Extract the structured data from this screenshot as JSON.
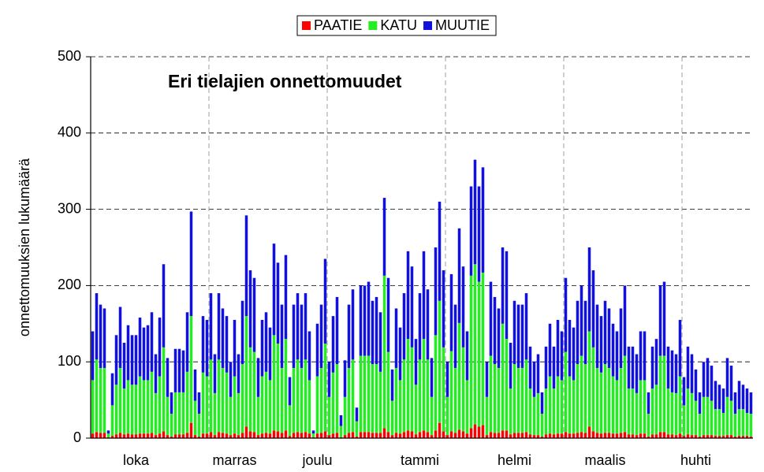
{
  "chart_data": {
    "type": "stacked_bar",
    "title": "Eri tielajien onnettomuudet",
    "y_label": "onnettomuuksien lukumäärä",
    "ylim": [
      0,
      500
    ],
    "yticks": [
      0,
      100,
      200,
      300,
      400,
      500
    ],
    "grid": true,
    "legend": "top",
    "xtick_interval": 30,
    "categories": [
      null,
      null,
      null,
      null,
      null,
      null,
      null,
      null,
      null,
      null,
      null,
      "loka",
      null,
      null,
      null,
      null,
      null,
      null,
      null,
      null,
      null,
      null,
      null,
      null,
      null,
      null,
      null,
      null,
      null,
      null,
      null,
      null,
      null,
      null,
      null,
      null,
      "marras",
      null,
      null,
      null,
      null,
      null,
      null,
      null,
      null,
      null,
      null,
      null,
      null,
      null,
      null,
      null,
      null,
      null,
      null,
      null,
      null,
      "joulu",
      null,
      null,
      null,
      null,
      null,
      null,
      null,
      null,
      null,
      null,
      null,
      null,
      null,
      null,
      null,
      null,
      null,
      null,
      null,
      null,
      null,
      null,
      null,
      null,
      null,
      "tammi",
      null,
      null,
      null,
      null,
      null,
      null,
      null,
      null,
      null,
      null,
      null,
      null,
      null,
      null,
      null,
      null,
      null,
      null,
      null,
      null,
      null,
      null,
      null,
      "helmi",
      null,
      null,
      null,
      null,
      null,
      null,
      null,
      null,
      null,
      null,
      null,
      null,
      null,
      null,
      null,
      null,
      null,
      null,
      null,
      null,
      null,
      null,
      "maalis",
      null,
      null,
      null,
      null,
      null,
      null,
      null,
      null,
      null,
      null,
      null,
      null,
      null,
      null,
      null,
      null,
      null,
      null,
      null,
      null,
      null,
      null,
      "huhti",
      null,
      null,
      null,
      null,
      null,
      null,
      null,
      null,
      null,
      null,
      null,
      null,
      null,
      null
    ],
    "series": [
      {
        "name": "PAATIE",
        "color": "#ff0000",
        "values": [
          6,
          8,
          7,
          7,
          1,
          3,
          5,
          7,
          5,
          6,
          5,
          5,
          6,
          6,
          6,
          7,
          4,
          6,
          9,
          4,
          2,
          5,
          5,
          5,
          7,
          20,
          4,
          2,
          6,
          6,
          8,
          4,
          8,
          7,
          6,
          4,
          6,
          4,
          7,
          15,
          9,
          8,
          4,
          6,
          7,
          6,
          10,
          9,
          7,
          10,
          3,
          7,
          8,
          7,
          8,
          6,
          1,
          6,
          7,
          9,
          4,
          6,
          7,
          1,
          4,
          7,
          8,
          2,
          8,
          8,
          8,
          7,
          7,
          7,
          13,
          8,
          4,
          7,
          6,
          8,
          10,
          9,
          5,
          8,
          10,
          8,
          4,
          10,
          20,
          9,
          4,
          9,
          7,
          11,
          9,
          6,
          13,
          18,
          15,
          17,
          4,
          8,
          7,
          7,
          10,
          10,
          5,
          7,
          7,
          7,
          8,
          5,
          4,
          4,
          2,
          5,
          6,
          5,
          6,
          6,
          8,
          6,
          6,
          7,
          8,
          7,
          15,
          9,
          7,
          6,
          7,
          7,
          6,
          6,
          7,
          8,
          5,
          5,
          4,
          6,
          6,
          2,
          5,
          5,
          8,
          8,
          5,
          5,
          4,
          6,
          3,
          5,
          4,
          4,
          2,
          4,
          4,
          4,
          3,
          3,
          3,
          4,
          4,
          2,
          3,
          3,
          3,
          2
        ]
      },
      {
        "name": "KATU",
        "color": "#22ee22",
        "values": [
          70,
          95,
          85,
          85,
          5,
          40,
          65,
          85,
          60,
          70,
          65,
          65,
          75,
          70,
          70,
          80,
          55,
          75,
          110,
          50,
          30,
          55,
          55,
          55,
          80,
          140,
          45,
          30,
          80,
          75,
          95,
          55,
          95,
          85,
          80,
          50,
          75,
          55,
          90,
          145,
          110,
          105,
          50,
          75,
          80,
          70,
          125,
          115,
          85,
          120,
          40,
          85,
          95,
          85,
          95,
          70,
          5,
          75,
          85,
          115,
          50,
          80,
          90,
          15,
          50,
          85,
          95,
          20,
          100,
          100,
          100,
          90,
          90,
          80,
          200,
          105,
          45,
          85,
          70,
          95,
          120,
          110,
          65,
          95,
          120,
          95,
          50,
          125,
          160,
          110,
          50,
          105,
          85,
          140,
          110,
          70,
          200,
          210,
          190,
          200,
          50,
          100,
          90,
          85,
          140,
          120,
          60,
          90,
          85,
          85,
          95,
          60,
          50,
          55,
          30,
          60,
          75,
          60,
          75,
          70,
          105,
          75,
          70,
          90,
          100,
          90,
          125,
          110,
          85,
          80,
          90,
          85,
          75,
          70,
          85,
          100,
          60,
          60,
          55,
          70,
          70,
          30,
          60,
          65,
          100,
          100,
          60,
          55,
          55,
          75,
          40,
          60,
          55,
          45,
          30,
          50,
          50,
          45,
          35,
          35,
          30,
          50,
          45,
          30,
          35,
          35,
          30,
          30
        ]
      },
      {
        "name": "MUUTIE",
        "color": "#1010e0",
        "values": [
          64,
          87,
          83,
          78,
          4,
          42,
          65,
          80,
          60,
          72,
          65,
          65,
          77,
          69,
          72,
          78,
          51,
          77,
          109,
          51,
          28,
          57,
          57,
          55,
          78,
          137,
          41,
          28,
          74,
          74,
          87,
          51,
          87,
          78,
          74,
          46,
          74,
          51,
          83,
          132,
          101,
          97,
          51,
          74,
          78,
          69,
          120,
          106,
          83,
          110,
          37,
          83,
          87,
          83,
          87,
          64,
          4,
          69,
          83,
          111,
          46,
          74,
          88,
          14,
          48,
          83,
          92,
          18,
          92,
          92,
          97,
          83,
          88,
          78,
          102,
          97,
          41,
          78,
          69,
          87,
          115,
          106,
          60,
          87,
          115,
          92,
          51,
          115,
          130,
          101,
          46,
          101,
          83,
          124,
          106,
          64,
          117,
          137,
          125,
          138,
          46,
          97,
          88,
          78,
          100,
          115,
          60,
          83,
          83,
          83,
          87,
          55,
          46,
          51,
          28,
          55,
          69,
          55,
          74,
          64,
          97,
          74,
          69,
          83,
          92,
          83,
          110,
          101,
          83,
          74,
          83,
          78,
          69,
          64,
          78,
          92,
          55,
          55,
          51,
          64,
          64,
          28,
          55,
          60,
          92,
          97,
          55,
          55,
          51,
          74,
          37,
          55,
          51,
          41,
          28,
          46,
          51,
          46,
          37,
          32,
          32,
          51,
          46,
          28,
          37,
          32,
          32,
          28
        ]
      }
    ]
  }
}
